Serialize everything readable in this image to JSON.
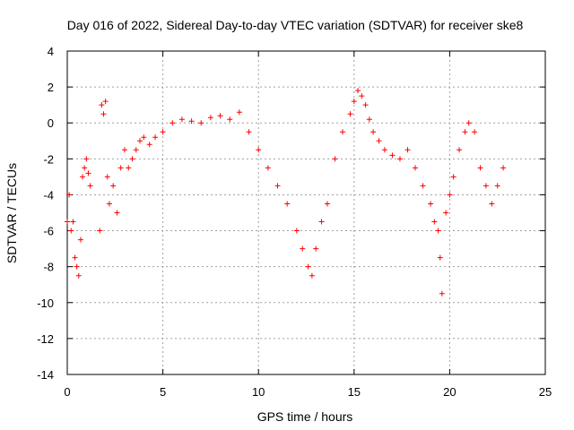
{
  "chart_data": {
    "type": "scatter",
    "title": "Day 016 of 2022, Sidereal Day-to-day VTEC variation (SDTVAR) for receiver ske8",
    "xlabel": "GPS time / hours",
    "ylabel": "SDTVAR / TECUs",
    "xlim": [
      0,
      25
    ],
    "ylim": [
      -14,
      4
    ],
    "xticks": [
      0,
      5,
      10,
      15,
      20,
      25
    ],
    "yticks": [
      -14,
      -12,
      -10,
      -8,
      -6,
      -4,
      -2,
      0,
      2,
      4
    ],
    "grid": true,
    "marker": "plus",
    "color": "#ff0000",
    "series": [
      {
        "name": "SDTVAR",
        "x": [
          0.0,
          0.1,
          0.2,
          0.3,
          0.4,
          0.5,
          0.6,
          0.7,
          0.8,
          0.9,
          1.0,
          1.1,
          1.2,
          1.7,
          1.8,
          1.9,
          2.0,
          2.1,
          2.2,
          2.4,
          2.6,
          2.8,
          3.0,
          3.2,
          3.4,
          3.6,
          3.8,
          4.0,
          4.3,
          4.6,
          5.0,
          5.5,
          6.0,
          6.5,
          7.0,
          7.5,
          8.0,
          8.5,
          9.0,
          9.5,
          10.0,
          10.5,
          11.0,
          11.5,
          12.0,
          12.3,
          12.6,
          12.8,
          13.0,
          13.3,
          13.6,
          14.0,
          14.4,
          14.8,
          15.0,
          15.2,
          15.4,
          15.6,
          15.8,
          16.0,
          16.3,
          16.6,
          17.0,
          17.4,
          17.8,
          18.2,
          18.6,
          19.0,
          19.2,
          19.4,
          19.5,
          19.6,
          19.8,
          20.0,
          20.2,
          20.5,
          20.8,
          21.0,
          21.3,
          21.6,
          21.9,
          22.2,
          22.5,
          22.8
        ],
        "y": [
          -5.5,
          -4.0,
          -6.0,
          -5.5,
          -7.5,
          -8.0,
          -8.5,
          -6.5,
          -3.0,
          -2.5,
          -2.0,
          -2.8,
          -3.5,
          -6.0,
          1.0,
          0.5,
          1.2,
          -3.0,
          -4.5,
          -3.5,
          -5.0,
          -2.5,
          -1.5,
          -2.5,
          -2.0,
          -1.5,
          -1.0,
          -0.8,
          -1.2,
          -0.8,
          -0.5,
          0.0,
          0.2,
          0.1,
          0.0,
          0.3,
          0.4,
          0.2,
          0.6,
          -0.5,
          -1.5,
          -2.5,
          -3.5,
          -4.5,
          -6.0,
          -7.0,
          -8.0,
          -8.5,
          -7.0,
          -5.5,
          -4.5,
          -2.0,
          -0.5,
          0.5,
          1.2,
          1.8,
          1.5,
          1.0,
          0.2,
          -0.5,
          -1.0,
          -1.5,
          -1.8,
          -2.0,
          -1.5,
          -2.5,
          -3.5,
          -4.5,
          -5.5,
          -6.0,
          -7.5,
          -9.5,
          -5.0,
          -4.0,
          -3.0,
          -1.5,
          -0.5,
          0.0,
          -0.5,
          -2.5,
          -3.5,
          -4.5,
          -3.5,
          -2.5
        ]
      }
    ]
  }
}
